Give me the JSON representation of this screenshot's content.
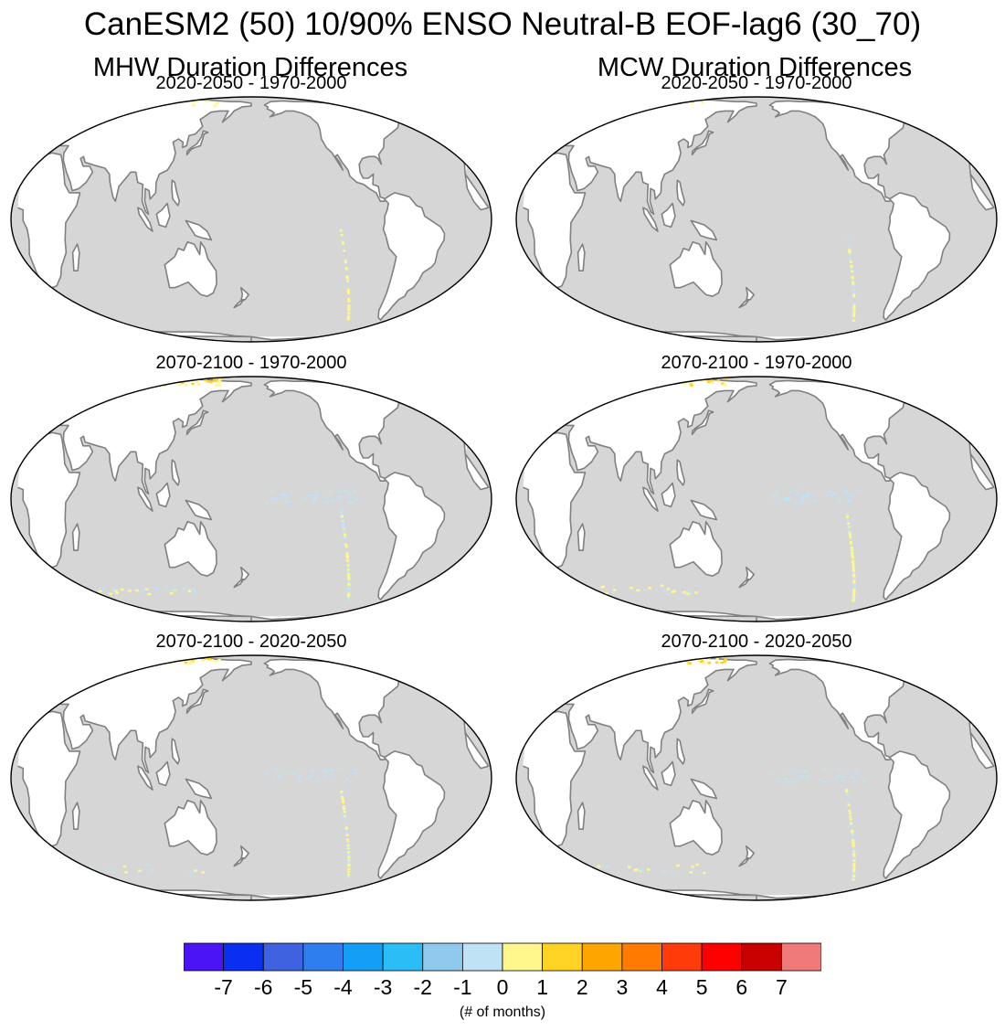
{
  "figure": {
    "title": "CanESM2 (50) 10/90% ENSO Neutral-B EOF-lag6 (30_70)",
    "columns": [
      {
        "title": "MHW Duration Differences"
      },
      {
        "title": "MCW Duration Differences"
      }
    ],
    "panels": [
      {
        "column": 0,
        "row": 0,
        "title": "2020-2050 - 1970-2000",
        "intensity": 1
      },
      {
        "column": 1,
        "row": 0,
        "title": "2020-2050 - 1970-2000",
        "intensity": 1
      },
      {
        "column": 0,
        "row": 1,
        "title": "2070-2100 - 1970-2000",
        "intensity": 3
      },
      {
        "column": 1,
        "row": 1,
        "title": "2070-2100 - 1970-2000",
        "intensity": 3
      },
      {
        "column": 0,
        "row": 2,
        "title": "2070-2100 - 2020-2050",
        "intensity": 2
      },
      {
        "column": 1,
        "row": 2,
        "title": "2070-2100 - 2020-2050",
        "intensity": 2
      }
    ],
    "colors": {
      "ocean": "#d6d6d6",
      "land": "#ffffff",
      "coast": "#808080",
      "frame": "#000000"
    }
  },
  "colorbar": {
    "labels": [
      "-7",
      "-6",
      "-5",
      "-4",
      "-3",
      "-2",
      "-1",
      "0",
      "1",
      "2",
      "3",
      "4",
      "5",
      "6",
      "7"
    ],
    "colors": [
      "#4b14f5",
      "#0b2ff0",
      "#3f63e0",
      "#2f7ef0",
      "#139ff5",
      "#2bbdf5",
      "#90c9ee",
      "#c0e2f5",
      "#fff68c",
      "#ffd324",
      "#ffa500",
      "#ff7a00",
      "#ff3b0a",
      "#ff0000",
      "#c80000",
      "#f07a7a"
    ],
    "units": "(# of months)"
  }
}
